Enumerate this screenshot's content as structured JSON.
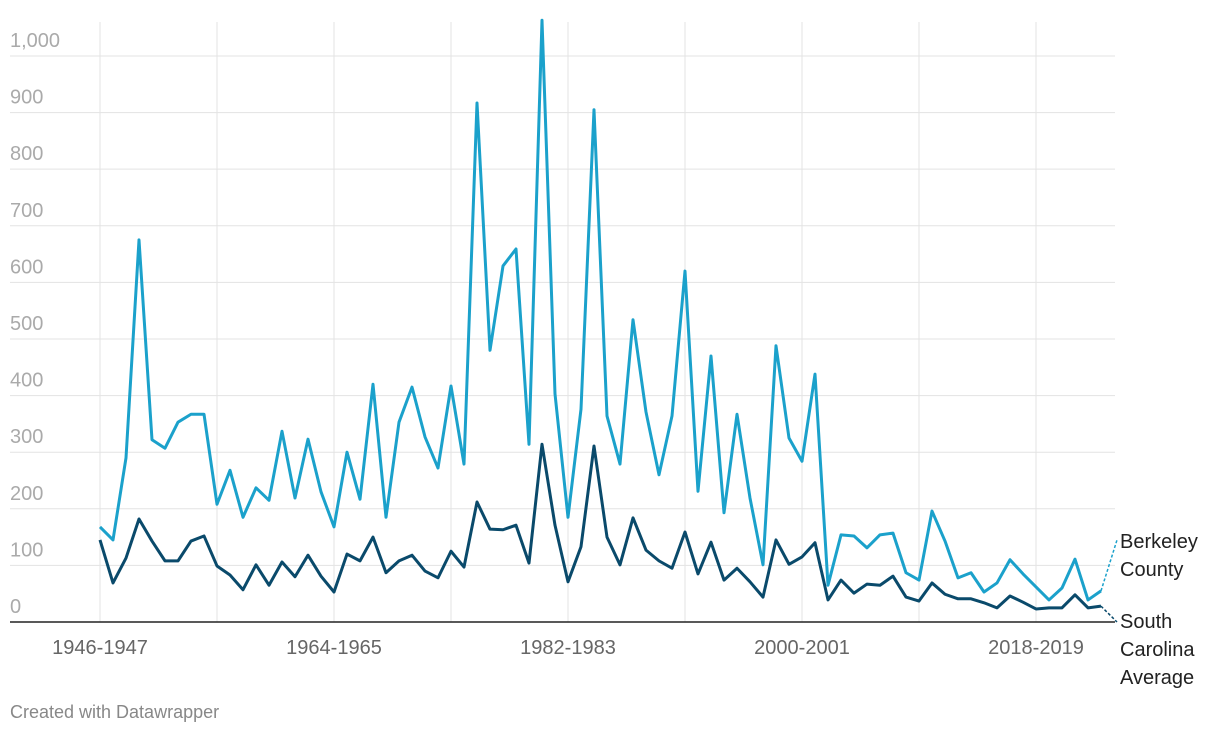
{
  "chart_data": {
    "type": "line",
    "categories": [
      "1946-1947",
      null,
      null,
      null,
      null,
      null,
      null,
      null,
      null,
      null,
      null,
      null,
      null,
      null,
      null,
      null,
      null,
      null,
      "1964-1965",
      null,
      null,
      null,
      null,
      null,
      null,
      null,
      null,
      null,
      null,
      null,
      null,
      null,
      null,
      null,
      null,
      null,
      "1982-1983",
      null,
      null,
      null,
      null,
      null,
      null,
      null,
      null,
      null,
      null,
      null,
      null,
      null,
      null,
      null,
      null,
      null,
      "2000-2001",
      null,
      null,
      null,
      null,
      null,
      null,
      null,
      null,
      null,
      null,
      null,
      null,
      null,
      null,
      null,
      null,
      null,
      "2018-2019",
      null,
      null,
      null,
      null,
      null
    ],
    "series": [
      {
        "name": "Berkeley County",
        "color": "#1ba1cb",
        "values": [
          168,
          145,
          290,
          675,
          322,
          307,
          353,
          367,
          367,
          208,
          268,
          185,
          237,
          215,
          337,
          219,
          323,
          230,
          168,
          300,
          217,
          420,
          185,
          353,
          415,
          327,
          272,
          417,
          279,
          917,
          480,
          629,
          659,
          314,
          1063,
          403,
          185,
          376,
          905,
          364,
          279,
          534,
          371,
          260,
          364,
          620,
          231,
          470,
          193,
          367,
          219,
          101,
          488,
          325,
          284,
          438,
          65,
          154,
          152,
          131,
          154,
          157,
          87,
          74,
          196,
          143,
          78,
          87,
          53,
          69,
          110,
          85,
          62,
          39,
          60,
          111,
          39,
          55
        ]
      },
      {
        "name": "South Carolina Average",
        "color": "#0a4a6b",
        "values": [
          145,
          69,
          113,
          182,
          143,
          108,
          108,
          143,
          152,
          99,
          83,
          57,
          101,
          65,
          106,
          80,
          118,
          81,
          53,
          120,
          108,
          150,
          87,
          108,
          118,
          90,
          78,
          125,
          97,
          212,
          164,
          163,
          171,
          104,
          314,
          171,
          71,
          133,
          311,
          150,
          101,
          184,
          127,
          108,
          95,
          159,
          85,
          141,
          74,
          95,
          71,
          44,
          145,
          102,
          115,
          140,
          39,
          74,
          51,
          67,
          65,
          81,
          44,
          37,
          69,
          49,
          41,
          41,
          34,
          25,
          46,
          35,
          23,
          25,
          25,
          48,
          25,
          28
        ]
      }
    ],
    "ylim": [
      0,
      1060
    ],
    "yticks": [
      0,
      100,
      200,
      300,
      400,
      500,
      600,
      700,
      800,
      900,
      {
        "value": 1000,
        "label": "1,000"
      }
    ],
    "grid": true,
    "footer": "Created with Datawrapper"
  }
}
